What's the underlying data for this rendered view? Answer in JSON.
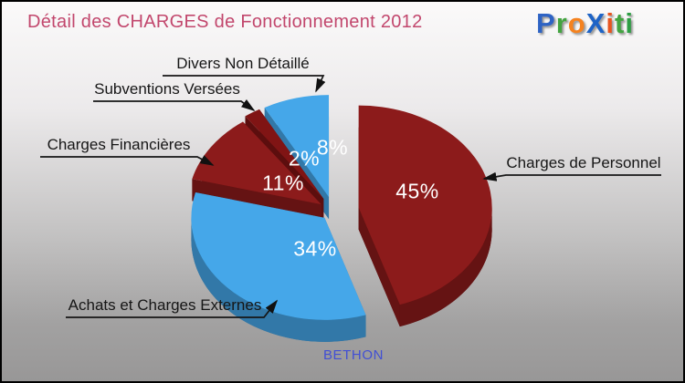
{
  "title": {
    "text": "Détail des CHARGES de Fonctionnement 2012",
    "color": "#C2476D"
  },
  "logo": {
    "name": "Proxiti",
    "letters": [
      {
        "ch": "P",
        "color": "#2E63C4"
      },
      {
        "ch": "r",
        "color": "#43A440"
      },
      {
        "ch": "o",
        "color": "#F5821F"
      },
      {
        "ch": "X",
        "color": "#1E63C6"
      },
      {
        "ch": "i",
        "color": "#E8551F"
      },
      {
        "ch": "t",
        "color": "#43A440"
      },
      {
        "ch": "i",
        "color": "#2E9E44"
      }
    ]
  },
  "footer": {
    "text": "BETHON",
    "color": "#414FD4"
  },
  "callouts": [
    {
      "text": "Divers Non Détaillé"
    },
    {
      "text": "Subventions Versées"
    },
    {
      "text": "Charges Financières"
    },
    {
      "text": "Charges de Personnel"
    },
    {
      "text": "Achats et Charges Externes"
    }
  ],
  "chart_data": {
    "type": "pie",
    "style": "3d-exploded",
    "title": "Détail des CHARGES de Fonctionnement 2012",
    "entity": "BETHON",
    "start_angle_deg": 0,
    "direction": "clockwise",
    "legend": "none",
    "slices": [
      {
        "label": "Charges de Personnel",
        "value_pct": 45,
        "display": "45%",
        "color": "#8C1B1B"
      },
      {
        "label": "Achats et Charges Externes",
        "value_pct": 34,
        "display": "34%",
        "color": "#45A7E9"
      },
      {
        "label": "Charges Financières",
        "value_pct": 11,
        "display": "11%",
        "color": "#8C1B1B"
      },
      {
        "label": "Subventions Versées",
        "value_pct": 2,
        "display": "2%",
        "color": "#801414"
      },
      {
        "label": "Divers Non Détaillé",
        "value_pct": 8,
        "display": "8%",
        "color": "#45A7E9"
      }
    ],
    "percent_label_color": "#FFFFFF"
  }
}
